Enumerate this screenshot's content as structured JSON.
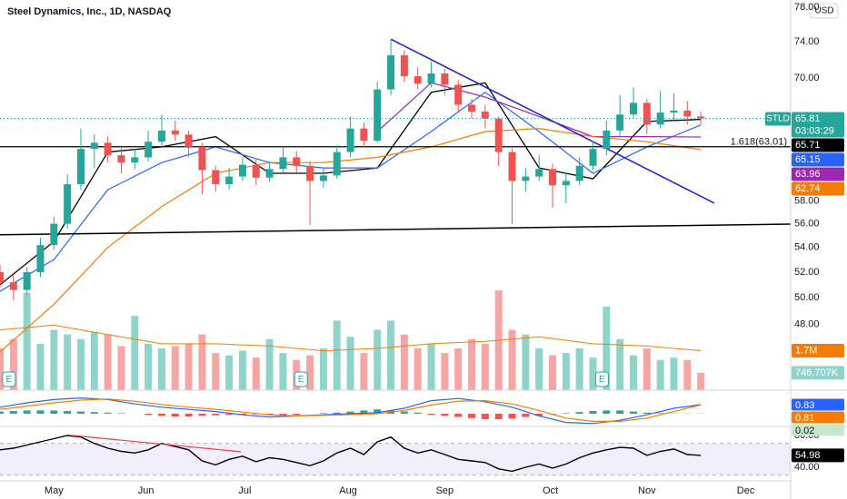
{
  "header": {
    "title": "Steel Dynamics, Inc., 1D, NASDAQ",
    "currency": "USD"
  },
  "chart_data": [
    {
      "type": "candlestick",
      "symbol": "STLD",
      "countdown": "03:03:29",
      "up_color": "#26a69a",
      "down_color": "#ef5350",
      "log_scale": true,
      "grid": false,
      "xlim": [
        0,
        176
      ],
      "ylim": [
        43.4,
        78.9
      ],
      "xticks": [
        {
          "value": 12,
          "label": "May"
        },
        {
          "value": 32.5,
          "label": "Jun"
        },
        {
          "value": 54.5,
          "label": "Jul"
        },
        {
          "value": 77.5,
          "label": "Aug"
        },
        {
          "value": 99,
          "label": "Sep"
        },
        {
          "value": 122.5,
          "label": "Oct"
        },
        {
          "value": 144,
          "label": "Nov"
        },
        {
          "value": 166,
          "label": "Dec"
        }
      ],
      "yticks": [
        {
          "value": 46,
          "label": "46.00"
        },
        {
          "value": 48,
          "label": "48.00"
        },
        {
          "value": 50,
          "label": "50.00"
        },
        {
          "value": 52,
          "label": "52.00"
        },
        {
          "value": 54,
          "label": "54.00"
        },
        {
          "value": 56,
          "label": "56.00"
        },
        {
          "value": 58,
          "label": "58.00"
        },
        {
          "value": 70,
          "label": "70.00"
        },
        {
          "value": 74,
          "label": "74.00"
        },
        {
          "value": 78,
          "label": "78.00"
        }
      ],
      "x": [
        0,
        3,
        6,
        9,
        12,
        15,
        18,
        21,
        24,
        27,
        30,
        33,
        36,
        39,
        42,
        45,
        48,
        51,
        54,
        57,
        60,
        63,
        66,
        69,
        72,
        75,
        78,
        81,
        84,
        87,
        90,
        93,
        96,
        99,
        102,
        105,
        108,
        111,
        114,
        117,
        120,
        123,
        126,
        129,
        132,
        135,
        138,
        141,
        144,
        147,
        150,
        153,
        156
      ],
      "open": [
        52.0,
        51.2,
        50.6,
        52.0,
        54.2,
        56.0,
        59.5,
        62.8,
        63.4,
        62.2,
        61.5,
        62.0,
        63.5,
        64.6,
        64.2,
        63.0,
        60.8,
        59.5,
        60.2,
        61.3,
        60.1,
        60.9,
        62.0,
        61.2,
        59.8,
        60.3,
        62.5,
        64.8,
        63.6,
        68.8,
        72.5,
        70.2,
        69.4,
        70.5,
        69.3,
        67.2,
        66.5,
        65.8,
        62.5,
        59.8,
        60.2,
        60.9,
        59.4,
        59.8,
        61.2,
        62.8,
        64.6,
        66.2,
        67.4,
        65.2,
        66.4,
        66.6,
        66.0
      ],
      "high": [
        52.6,
        51.8,
        52.4,
        54.8,
        56.6,
        60.4,
        64.8,
        64.2,
        64.0,
        62.9,
        62.8,
        64.6,
        66.2,
        65.6,
        64.6,
        63.4,
        61.2,
        61.0,
        62.0,
        61.8,
        61.6,
        63.0,
        62.6,
        61.6,
        61.0,
        63.2,
        66.0,
        65.4,
        69.6,
        74.2,
        73.0,
        71.2,
        71.8,
        71.0,
        69.8,
        67.8,
        67.2,
        66.0,
        63.0,
        61.0,
        62.2,
        61.4,
        60.6,
        62.0,
        63.6,
        65.6,
        68.2,
        69.0,
        67.8,
        68.6,
        68.4,
        67.6,
        66.5
      ],
      "low": [
        50.8,
        49.8,
        50.2,
        51.6,
        53.8,
        55.6,
        59.0,
        61.0,
        61.5,
        60.5,
        60.9,
        61.6,
        63.0,
        63.6,
        62.0,
        58.6,
        58.8,
        59.0,
        59.8,
        59.4,
        59.7,
        60.5,
        60.6,
        55.9,
        59.2,
        60.0,
        62.0,
        63.0,
        63.4,
        68.2,
        69.6,
        68.8,
        69.0,
        68.2,
        66.4,
        65.8,
        64.8,
        61.2,
        56.0,
        58.8,
        59.8,
        57.4,
        57.8,
        59.4,
        60.8,
        62.2,
        64.0,
        65.8,
        64.2,
        64.8,
        65.6,
        65.2,
        65.2
      ],
      "close": [
        51.2,
        50.6,
        52.0,
        54.2,
        56.0,
        59.5,
        62.8,
        63.4,
        62.2,
        61.5,
        62.0,
        63.5,
        64.6,
        64.2,
        63.0,
        60.8,
        59.5,
        60.2,
        61.3,
        60.1,
        60.9,
        62.0,
        61.2,
        59.8,
        60.3,
        62.5,
        64.8,
        63.6,
        68.8,
        72.5,
        70.2,
        69.4,
        70.5,
        69.3,
        67.2,
        66.5,
        65.8,
        62.5,
        59.8,
        60.2,
        60.9,
        59.4,
        59.8,
        61.2,
        62.8,
        64.6,
        66.2,
        67.4,
        65.2,
        66.4,
        66.6,
        66.0,
        65.81
      ],
      "overlays": [
        {
          "color": "#000000",
          "x": [
            0,
            12,
            24,
            36,
            48,
            60,
            72,
            84,
            96,
            108,
            120,
            132,
            144,
            156
          ],
          "values": [
            51.0,
            54.5,
            62.5,
            63.0,
            64.0,
            60.5,
            60.5,
            61.0,
            68.5,
            69.5,
            61.0,
            60.0,
            65.5,
            65.71
          ]
        },
        {
          "color": "#2962ff",
          "x": [
            0,
            12,
            24,
            36,
            48,
            60,
            72,
            84,
            96,
            108,
            120,
            132,
            144,
            156
          ],
          "values": [
            50.5,
            53.0,
            59.0,
            61.5,
            63.0,
            61.5,
            61.0,
            61.0,
            64.5,
            68.5,
            64.5,
            60.5,
            63.0,
            65.15
          ]
        },
        {
          "color": "#9c27b0",
          "x": [
            84,
            96,
            108,
            120,
            132,
            144,
            156
          ],
          "values": [
            64.5,
            69.5,
            68.0,
            66.0,
            64.0,
            64.0,
            63.96
          ]
        },
        {
          "color": "#f57c00",
          "x": [
            0,
            12,
            24,
            36,
            48,
            60,
            72,
            84,
            96,
            108,
            120,
            132,
            144,
            156
          ],
          "values": [
            46.0,
            49.5,
            54.0,
            57.5,
            60.5,
            61.5,
            61.5,
            62.0,
            63.0,
            64.5,
            64.8,
            64.0,
            63.5,
            62.74
          ]
        }
      ],
      "hlines": [
        {
          "value": 63.01,
          "label": "1.618(63.01)",
          "color": "#000000"
        }
      ],
      "trendlines": [
        {
          "color": "#2020d0",
          "x": [
            87,
            159
          ],
          "values": [
            74.3,
            57.8
          ]
        },
        {
          "color": "#000000",
          "x": [
            0,
            176
          ],
          "values": [
            55.06,
            55.97
          ]
        }
      ],
      "earnings": {
        "label": "E",
        "x": [
          2,
          67,
          134
        ]
      }
    },
    {
      "type": "bar",
      "up_color": "#8fd3cb",
      "down_color": "#f5a6a4",
      "ylim": [
        0,
        4.5
      ],
      "values": [
        1.8,
        2.2,
        4.2,
        2.0,
        2.6,
        2.4,
        2.2,
        2.5,
        2.4,
        1.9,
        3.2,
        2.0,
        1.8,
        1.9,
        2.0,
        2.4,
        1.6,
        1.5,
        1.7,
        1.4,
        2.2,
        1.6,
        1.3,
        1.5,
        1.8,
        3.0,
        2.3,
        1.6,
        2.6,
        3.0,
        2.4,
        1.8,
        2.0,
        1.6,
        1.8,
        2.2,
        2.0,
        4.3,
        2.6,
        2.4,
        1.8,
        1.5,
        1.6,
        1.8,
        1.4,
        3.6,
        2.2,
        1.5,
        1.8,
        1.3,
        1.4,
        1.3,
        0.746707
      ],
      "last_value_label": "746.707K",
      "ma": {
        "color": "#f57c00",
        "x": [
          0,
          12,
          24,
          36,
          48,
          60,
          72,
          84,
          96,
          108,
          120,
          132,
          144,
          156
        ],
        "values": [
          2.6,
          2.8,
          2.4,
          2.0,
          2.0,
          1.9,
          1.7,
          1.8,
          2.0,
          2.1,
          2.3,
          2.0,
          1.9,
          1.7
        ],
        "last_value_label": "1.7M"
      }
    },
    {
      "type": "macd",
      "ylim": [
        -1.0,
        2.0
      ],
      "up_color": "#26a69a",
      "down_color": "#ef5350",
      "x": [
        0,
        6,
        12,
        18,
        24,
        30,
        36,
        42,
        48,
        54,
        60,
        66,
        72,
        78,
        84,
        90,
        96,
        102,
        108,
        114,
        120,
        126,
        132,
        138,
        144,
        150,
        156
      ],
      "macd": [
        0.6,
        1.0,
        1.3,
        1.45,
        1.3,
        0.9,
        0.6,
        0.4,
        0.2,
        -0.1,
        -0.3,
        -0.2,
        -0.1,
        0.0,
        0.1,
        0.5,
        1.2,
        1.4,
        1.1,
        0.6,
        -0.2,
        -0.8,
        -0.9,
        -0.6,
        -0.1,
        0.5,
        0.83
      ],
      "macd_color": "#2962ff",
      "signal": [
        0.4,
        0.7,
        1.0,
        1.25,
        1.35,
        1.15,
        0.85,
        0.6,
        0.4,
        0.15,
        -0.1,
        -0.2,
        -0.15,
        -0.08,
        0.0,
        0.3,
        0.8,
        1.15,
        1.2,
        0.9,
        0.3,
        -0.4,
        -0.7,
        -0.7,
        -0.4,
        0.2,
        0.81
      ],
      "signal_color": "#f57c00",
      "histogram": [
        0.2,
        0.25,
        0.3,
        0.3,
        0.3,
        0.25,
        0.2,
        0.15,
        0.1,
        0.05,
        0,
        -0.1,
        -0.2,
        -0.25,
        -0.25,
        -0.2,
        -0.15,
        -0.1,
        -0.1,
        -0.05,
        -0.1,
        -0.15,
        -0.1,
        0,
        0.05,
        0.1,
        0.2,
        0.3,
        0.4,
        0.3,
        0.2,
        0.1,
        -0.1,
        -0.2,
        -0.3,
        -0.4,
        -0.5,
        -0.5,
        -0.45,
        -0.3,
        -0.2,
        -0.05,
        0.05,
        0.15,
        0.25,
        0.3,
        0.3,
        0.2,
        0.1,
        0.05,
        0.03,
        0.02,
        0.02
      ]
    },
    {
      "type": "line",
      "color": "#000000",
      "ylim": [
        22.9,
        91.4
      ],
      "yticks": [
        {
          "value": 80,
          "label": "80.00"
        },
        {
          "value": 40,
          "label": "40.00"
        }
      ],
      "band": [
        30,
        70
      ],
      "band_color": "#7e57c2",
      "values": [
        62,
        64,
        68,
        72,
        76,
        80,
        78,
        70,
        64,
        60,
        58,
        62,
        70,
        66,
        62,
        48,
        43,
        50,
        54,
        47,
        52,
        50,
        46,
        42,
        48,
        58,
        64,
        56,
        72,
        78,
        64,
        58,
        62,
        56,
        50,
        48,
        46,
        38,
        35,
        40,
        44,
        39,
        44,
        52,
        58,
        62,
        65,
        64,
        55,
        60,
        63,
        56,
        54.98
      ],
      "divergence": {
        "color": "#f23645",
        "x": [
          16.2,
          53.6
        ],
        "values": [
          80,
          59.5
        ]
      }
    }
  ]
}
